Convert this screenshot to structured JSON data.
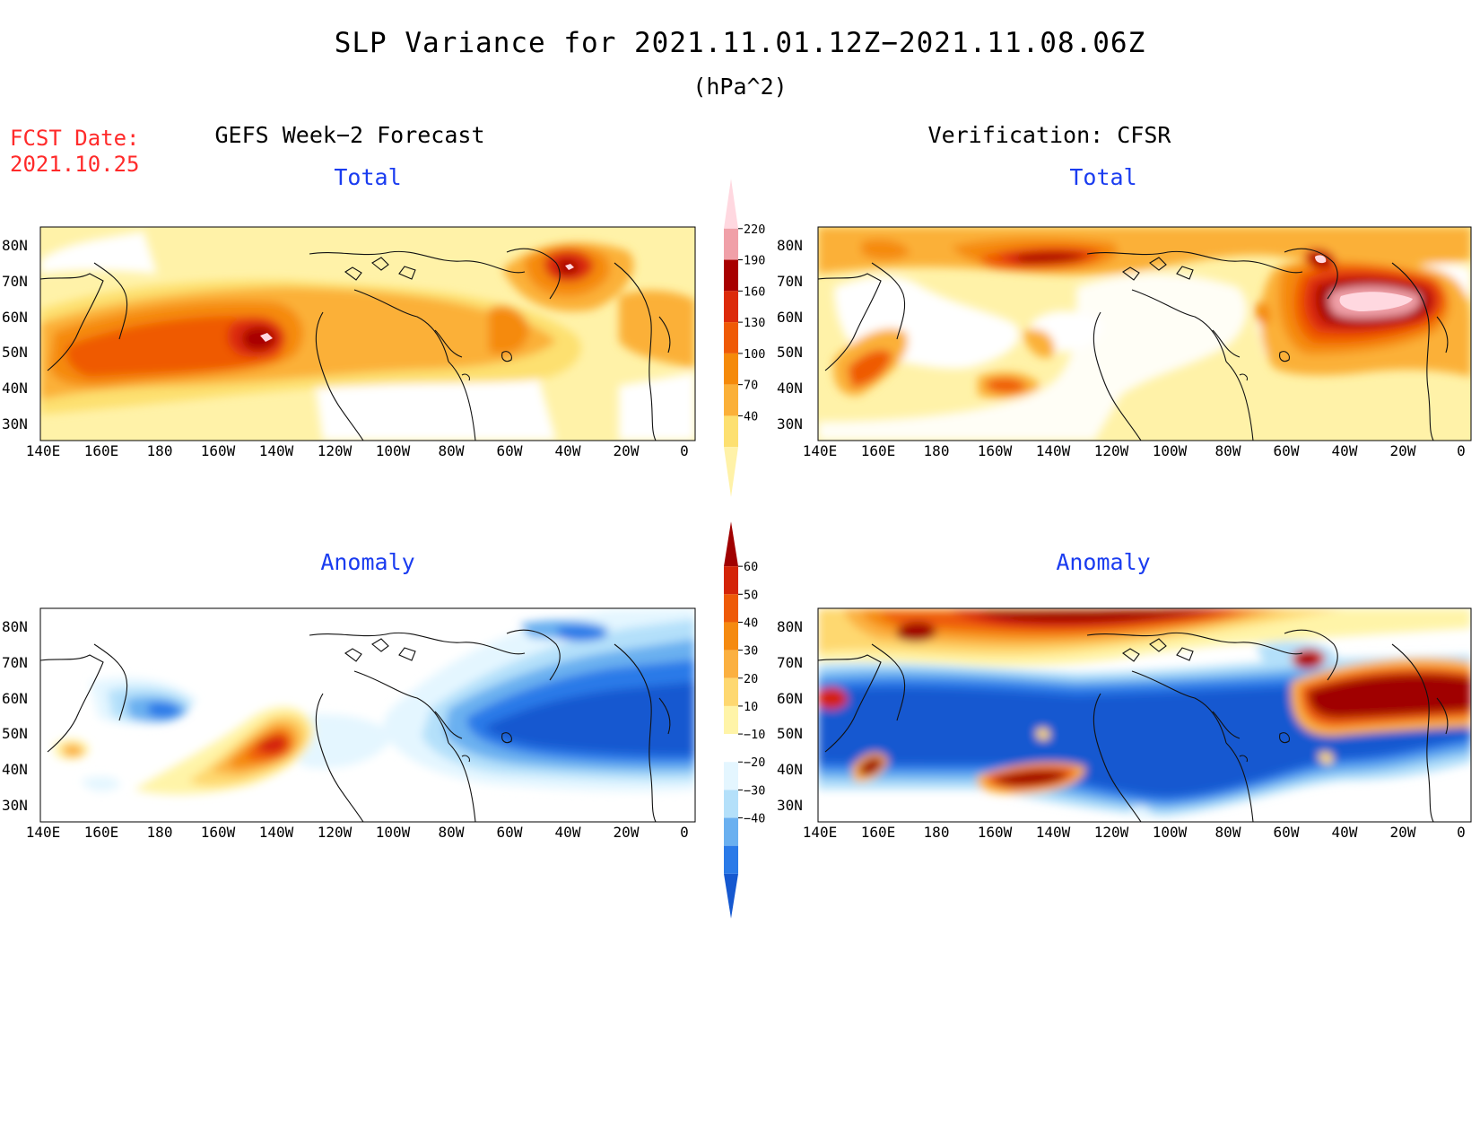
{
  "title": "SLP Variance for 2021.11.01.12Z−2021.11.08.06Z",
  "units": "(hPa^2)",
  "fcst_date": {
    "label": "FCST Date:",
    "value": "2021.10.25"
  },
  "columns": {
    "left": "GEFS Week−2 Forecast",
    "right": "Verification: CFSR"
  },
  "panel_labels": {
    "top_left": "Total",
    "top_right": "Total",
    "bottom_left": "Anomaly",
    "bottom_right": "Anomaly"
  },
  "lat_ticks": [
    "80N",
    "70N",
    "60N",
    "50N",
    "40N",
    "30N"
  ],
  "lon_ticks": [
    "140E",
    "160E",
    "180",
    "160W",
    "140W",
    "120W",
    "100W",
    "80W",
    "60W",
    "40W",
    "20W",
    "0"
  ],
  "colorbar_total": {
    "levels": [
      "40",
      "70",
      "100",
      "130",
      "160",
      "190",
      "220"
    ],
    "colors": [
      "#fff2a8",
      "#fde070",
      "#fbb038",
      "#f58a0a",
      "#ef5a06",
      "#dc2a0a",
      "#a80000",
      "#f0a0a8",
      "#ffd8e0"
    ]
  },
  "colorbar_anomaly": {
    "levels": [
      "−40",
      "−30",
      "−20",
      "−10",
      "10",
      "20",
      "30",
      "40",
      "50",
      "60"
    ],
    "colors": [
      "#1558d0",
      "#2a7ae8",
      "#6ab0f0",
      "#b4e0fa",
      "#e4f6ff",
      "#ffffff",
      "#fff4a8",
      "#fed870",
      "#fbb040",
      "#f58a10",
      "#ee5a08",
      "#d42408",
      "#a00000"
    ]
  }
}
